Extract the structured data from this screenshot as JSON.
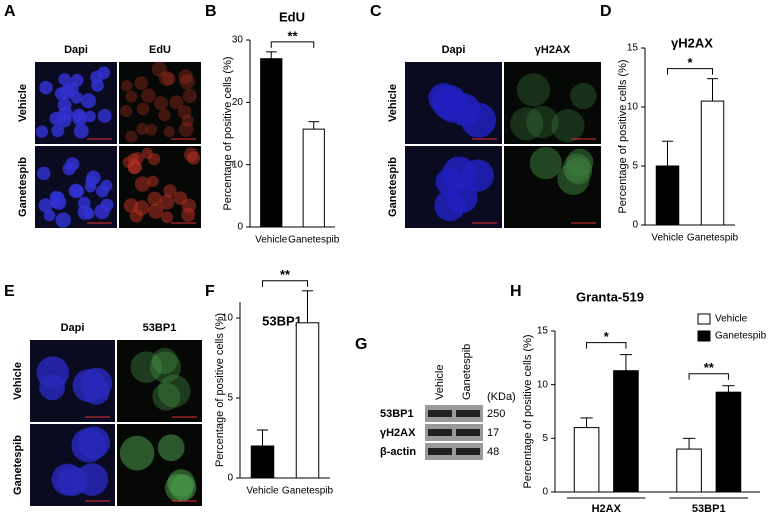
{
  "panels": [
    "A",
    "B",
    "C",
    "D",
    "E",
    "F",
    "G",
    "H"
  ],
  "images": [
    {
      "columns": [
        "Dapi",
        "EdU"
      ],
      "rows": [
        "Vehicle",
        "Ganetespib"
      ]
    },
    {
      "columns": [
        "Dapi",
        "γH2AX"
      ],
      "rows": [
        "Vehicle",
        "Ganetespib"
      ]
    },
    {
      "columns": [
        "Dapi",
        "53BP1"
      ],
      "rows": [
        "Vehicle",
        "Ganetespib"
      ]
    }
  ],
  "blot": {
    "columns": [
      "Vehicle",
      "Ganetespib"
    ],
    "unit": "(KDa)",
    "rows": [
      {
        "label": "53BP1",
        "size": "250"
      },
      {
        "label": "γH2AX",
        "size": "17"
      },
      {
        "label": "β-actin",
        "size": "48"
      }
    ]
  },
  "chart_data": [
    {
      "type": "bar",
      "title": "EdU",
      "ylabel": "Percentage of positive cells (%)",
      "categories": [
        "Vehicle",
        "Ganetespib"
      ],
      "values": [
        27,
        15.7
      ],
      "errors": [
        1.1,
        1.2
      ],
      "colors": [
        "#000000",
        "#ffffff"
      ],
      "ylim": [
        0,
        30
      ],
      "yticks": [
        0,
        10,
        20,
        30
      ],
      "significance": "**"
    },
    {
      "type": "bar",
      "title": "γH2AX",
      "ylabel": "Percentage of positive cells (%)",
      "categories": [
        "Vehicle",
        "Ganetespib"
      ],
      "values": [
        5,
        10.5
      ],
      "errors": [
        2.1,
        1.9
      ],
      "colors": [
        "#000000",
        "#ffffff"
      ],
      "ylim": [
        0,
        15
      ],
      "yticks": [
        0,
        5,
        10,
        15
      ],
      "significance": "*"
    },
    {
      "type": "bar",
      "title": "53BP1",
      "ylabel": "Percentage of positive cells (%)",
      "categories": [
        "Vehicle",
        "Ganetespib"
      ],
      "values": [
        2,
        9.7
      ],
      "errors": [
        1,
        2
      ],
      "colors": [
        "#000000",
        "#ffffff"
      ],
      "ylim": [
        0,
        11
      ],
      "yticks": [
        0,
        5,
        10
      ],
      "significance": "**"
    },
    {
      "type": "grouped-bar",
      "title": "Granta-519",
      "ylabel": "Percentage of positive cells (%)",
      "categories": [
        "H2AX",
        "53BP1"
      ],
      "series": [
        {
          "name": "Vehicle",
          "color": "#ffffff",
          "values": [
            6,
            4
          ],
          "errors": [
            0.9,
            1
          ]
        },
        {
          "name": "Ganetespib",
          "color": "#000000",
          "values": [
            11.3,
            9.3
          ],
          "errors": [
            1.5,
            0.6
          ]
        }
      ],
      "ylim": [
        0,
        15
      ],
      "yticks": [
        0,
        5,
        10,
        15
      ],
      "significance": [
        "*",
        "**"
      ],
      "legend": "upper right"
    }
  ]
}
